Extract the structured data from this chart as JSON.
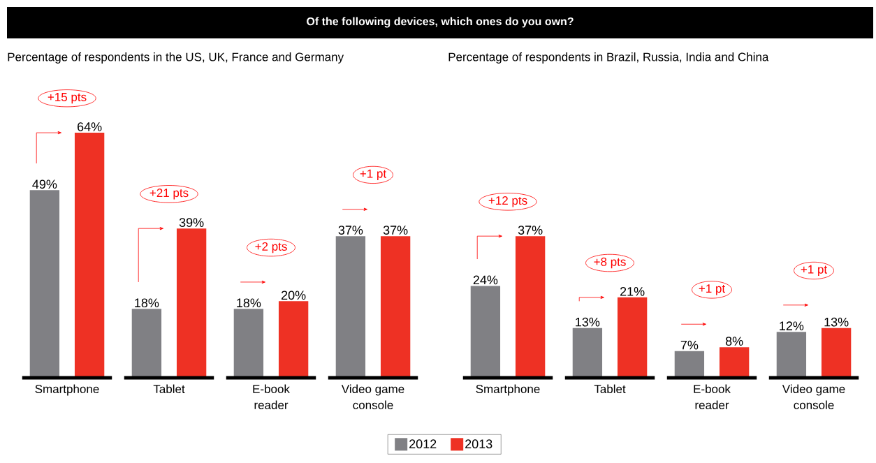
{
  "chart_data": [
    {
      "type": "bar",
      "title": "Of the following devices, which ones do you own?",
      "subtitle": "Percentage of respondents in the US, UK, France and Germany",
      "categories": [
        "Smartphone",
        "Tablet",
        "E-book reader",
        "Video game console"
      ],
      "series": [
        {
          "name": "2012",
          "color": "#808084",
          "values": [
            49,
            18,
            18,
            37
          ],
          "value_labels": [
            "49%",
            "18%",
            "18%",
            "37%"
          ]
        },
        {
          "name": "2013",
          "color": "#ee3124",
          "values": [
            64,
            39,
            20,
            37
          ],
          "value_labels": [
            "64%",
            "39%",
            "20%",
            "37%"
          ]
        }
      ],
      "legend": "bottom",
      "annotations": [
        "+15 pts",
        "+21 pts",
        "+2 pts",
        "+1 pt"
      ]
    },
    {
      "type": "bar",
      "subtitle": "Percentage of respondents in Brazil, Russia, India and China",
      "categories": [
        "Smartphone",
        "Tablet",
        "E-book reader",
        "Video game console"
      ],
      "series": [
        {
          "color": "#808084",
          "values": [
            24,
            13,
            7,
            12
          ],
          "value_labels": [
            "24%",
            "13%",
            "7%",
            "12%"
          ]
        },
        {
          "color": "#ee3124",
          "values": [
            37,
            21,
            8,
            13
          ],
          "value_labels": [
            "37%",
            "21%",
            "8%",
            "13%"
          ]
        }
      ],
      "annotations": [
        "+12 pts",
        "+8 pts",
        "+1 pt",
        "+1 pt"
      ]
    }
  ]
}
